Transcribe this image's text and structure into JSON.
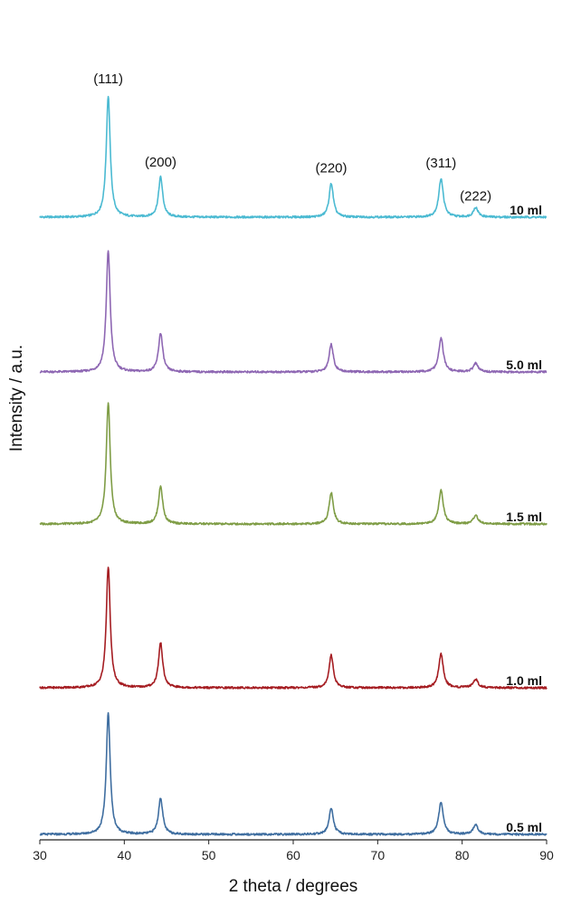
{
  "chart_data": {
    "type": "line",
    "title": "",
    "xlabel": "2 theta / degrees",
    "ylabel": "Intensity / a.u.",
    "xlim": [
      30,
      90
    ],
    "xticks": [
      30,
      40,
      50,
      60,
      70,
      80,
      90
    ],
    "peaks": [
      {
        "hkl": "(111)",
        "x": 38.1
      },
      {
        "hkl": "(200)",
        "x": 44.3
      },
      {
        "hkl": "(220)",
        "x": 64.5
      },
      {
        "hkl": "(311)",
        "x": 77.5
      },
      {
        "hkl": "(222)",
        "x": 81.6
      }
    ],
    "series": [
      {
        "name": "10 ml",
        "color": "#4bbad2",
        "peak_intensities": [
          1.0,
          0.33,
          0.28,
          0.32,
          0.08
        ]
      },
      {
        "name": "5.0 ml",
        "color": "#8e67b3",
        "peak_intensities": [
          1.0,
          0.32,
          0.23,
          0.28,
          0.07
        ]
      },
      {
        "name": "1.5 ml",
        "color": "#7f9d46",
        "peak_intensities": [
          1.0,
          0.31,
          0.26,
          0.28,
          0.07
        ]
      },
      {
        "name": "1.0 ml",
        "color": "#a51d22",
        "peak_intensities": [
          1.0,
          0.37,
          0.27,
          0.28,
          0.07
        ]
      },
      {
        "name": "0.5 ml",
        "color": "#3f6ea0",
        "peak_intensities": [
          1.0,
          0.3,
          0.22,
          0.27,
          0.08
        ]
      }
    ]
  }
}
